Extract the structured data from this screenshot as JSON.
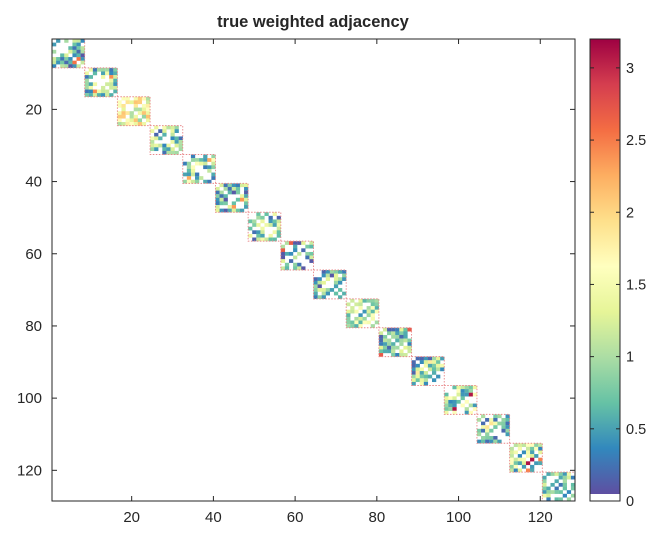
{
  "chart_data": {
    "type": "heatmap",
    "title": "true weighted adjacency",
    "xlabel": "",
    "ylabel": "",
    "matrix_size": 128,
    "xlim": [
      0.5,
      128.5
    ],
    "ylim": [
      0.5,
      128.5
    ],
    "y_direction": "reversed",
    "x_ticks": [
      20,
      40,
      60,
      80,
      100,
      120
    ],
    "x_tick_labels": [
      "20",
      "40",
      "60",
      "80",
      "100",
      "120"
    ],
    "y_ticks": [
      20,
      40,
      60,
      80,
      100,
      120
    ],
    "y_tick_labels": [
      "20",
      "40",
      "60",
      "80",
      "100",
      "120"
    ],
    "grid": false,
    "colormap": "spectral (low = dark blue, high = dark red)",
    "colorbar": {
      "position": "right",
      "min": 0,
      "max": 3.2,
      "ticks": [
        0,
        0.5,
        1,
        1.5,
        2,
        2.5,
        3
      ],
      "tick_labels": [
        "0",
        "0.5",
        "1",
        "1.5",
        "2",
        "2.5",
        "3"
      ],
      "zero_color": "#ffffff"
    },
    "block_size": 8,
    "blocks": [
      {
        "start": 1,
        "end": 8
      },
      {
        "start": 9,
        "end": 16
      },
      {
        "start": 17,
        "end": 24
      },
      {
        "start": 25,
        "end": 32
      },
      {
        "start": 33,
        "end": 40
      },
      {
        "start": 41,
        "end": 48
      },
      {
        "start": 49,
        "end": 56
      },
      {
        "start": 57,
        "end": 64
      },
      {
        "start": 65,
        "end": 72
      },
      {
        "start": 73,
        "end": 80
      },
      {
        "start": 81,
        "end": 88
      },
      {
        "start": 89,
        "end": 96
      },
      {
        "start": 97,
        "end": 104
      },
      {
        "start": 105,
        "end": 112
      },
      {
        "start": 113,
        "end": 120
      },
      {
        "start": 121,
        "end": 128
      }
    ],
    "block_mean_weights": [
      0.7,
      0.9,
      1.5,
      0.8,
      0.9,
      0.7,
      0.8,
      0.6,
      0.6,
      0.9,
      0.8,
      0.8,
      1.0,
      0.8,
      1.0,
      0.8
    ],
    "edge_density": 0.75,
    "diagonal_value": 0,
    "block_outline_color": "#e8888a"
  }
}
